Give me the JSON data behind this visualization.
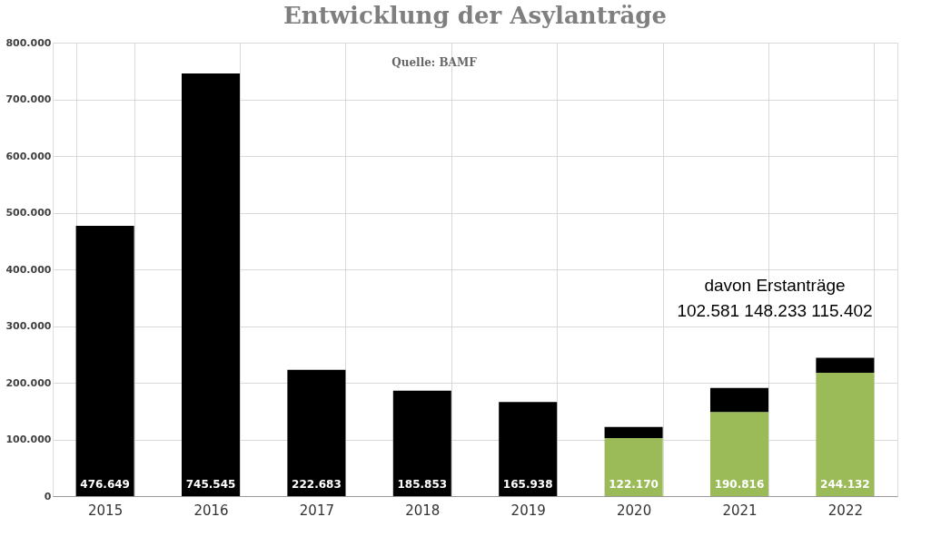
{
  "chart_data": {
    "type": "bar",
    "title": "Entwicklung der Asylanträge",
    "categories": [
      "2015",
      "2016",
      "2017",
      "2018",
      "2019",
      "2020",
      "2021",
      "2022"
    ],
    "stacked": true,
    "series": [
      {
        "color": "#9bbb59",
        "values": [
          null,
          null,
          null,
          null,
          null,
          102581,
          148233,
          217774
        ]
      },
      {
        "color": "#000000",
        "values": [
          476649,
          745545,
          222683,
          185853,
          165938,
          19589,
          42583,
          26358
        ]
      }
    ],
    "totals": [
      "476.649",
      "745.545",
      "222.683",
      "185.853",
      "165.938",
      "122.170",
      "190.816",
      "244.132"
    ],
    "ylim": [
      0,
      800000
    ],
    "yticks": [
      0,
      {
        "value": 100000,
        "label": "100.000"
      },
      {
        "value": 200000,
        "label": "200.000"
      },
      {
        "value": 300000,
        "label": "300.000"
      },
      {
        "value": 400000,
        "label": "400.000"
      },
      {
        "value": 500000,
        "label": "500.000"
      },
      {
        "value": 600000,
        "label": "600.000"
      },
      {
        "value": 700000,
        "label": "700.000"
      },
      {
        "value": 800000,
        "label": "800.000"
      }
    ],
    "grid": true,
    "annotations": [
      "Quelle: BAMF",
      "davon Erstanträge",
      "102.581    148.233    115.402"
    ]
  }
}
